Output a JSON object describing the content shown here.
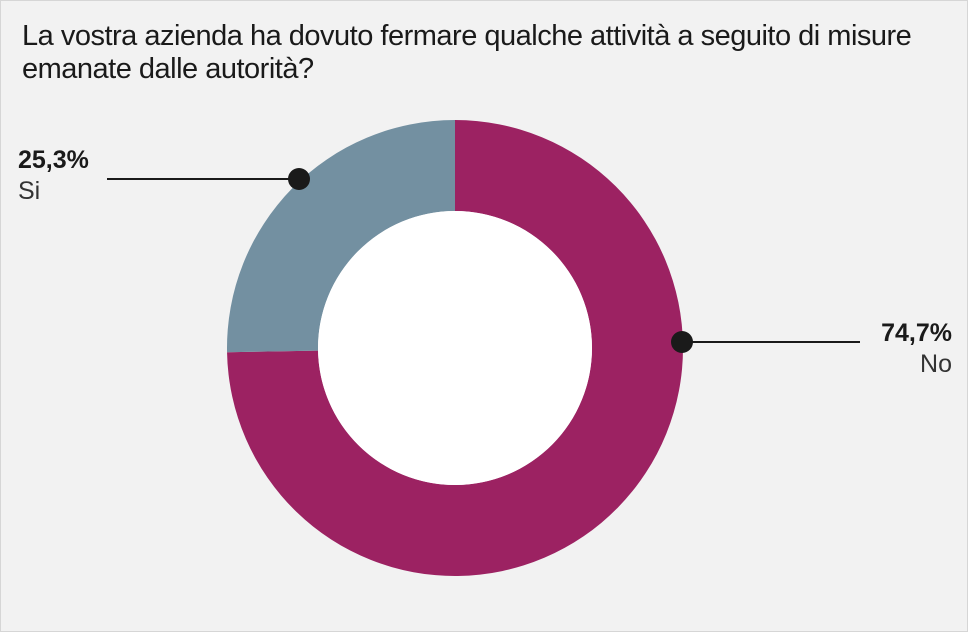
{
  "title": "La vostra azienda ha dovuto fermare qualche attività a seguito di misure emanate dalle autorità?",
  "chart_data": {
    "type": "pie",
    "donut": true,
    "slices": [
      {
        "label": "No",
        "value": 74.7,
        "value_label": "74,7%",
        "color": "#9c2262"
      },
      {
        "label": "Si",
        "value": 25.3,
        "value_label": "25,3%",
        "color": "#7390a1"
      }
    ]
  }
}
